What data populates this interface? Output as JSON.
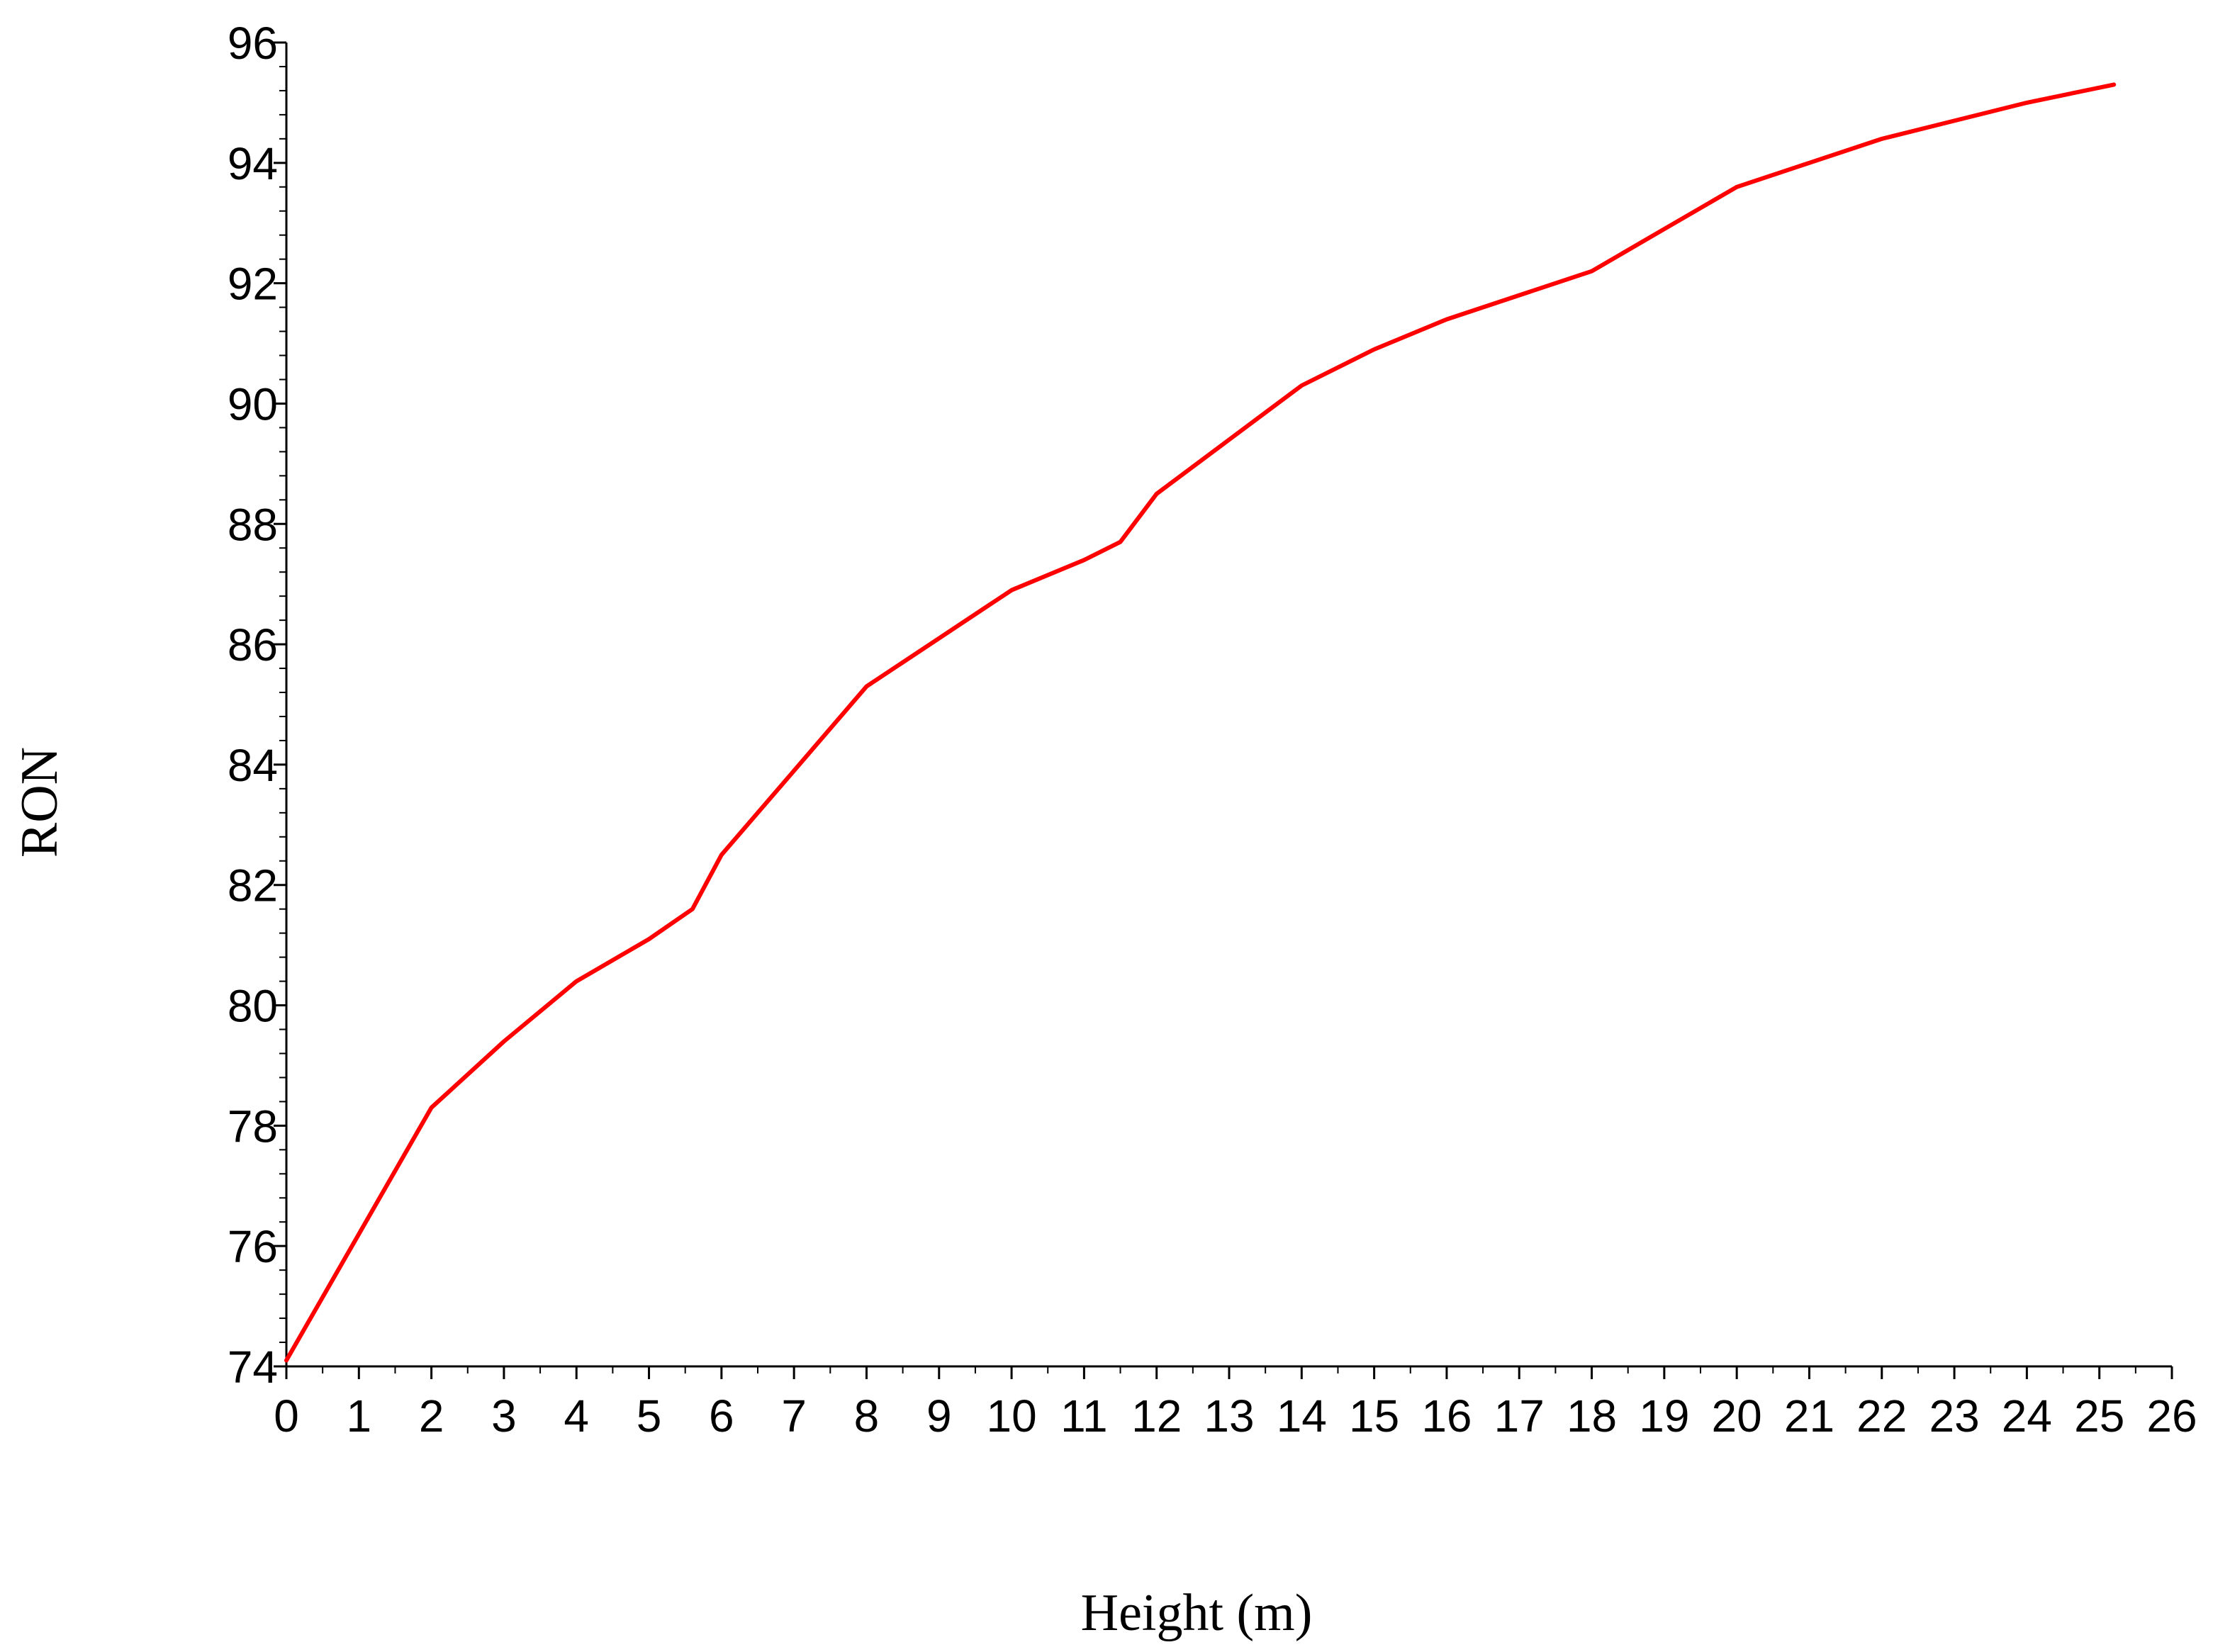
{
  "chart_data": {
    "type": "line",
    "title": "",
    "xlabel": "Height (m)",
    "ylabel": "RON",
    "xlim": [
      0,
      26
    ],
    "ylim": [
      74,
      96
    ],
    "x_ticks": [
      0,
      1,
      2,
      3,
      4,
      5,
      6,
      7,
      8,
      9,
      10,
      11,
      12,
      13,
      14,
      15,
      16,
      17,
      18,
      19,
      20,
      21,
      22,
      23,
      24,
      25,
      26
    ],
    "y_ticks": [
      74,
      76,
      78,
      80,
      82,
      84,
      86,
      88,
      90,
      92,
      94,
      96
    ],
    "x_minor_step": 0.5,
    "y_minor_step": 0.4,
    "grid": false,
    "legend": "none",
    "series": [
      {
        "color": "#ff0000",
        "x": [
          0,
          1,
          2,
          3,
          4,
          5,
          5.6,
          6,
          7,
          8,
          9,
          10,
          11,
          11.5,
          12,
          13,
          14,
          15,
          16,
          17,
          18,
          19,
          20,
          21,
          22,
          23,
          24,
          25.2
        ],
        "y": [
          74.1,
          76.2,
          78.3,
          79.4,
          80.4,
          81.1,
          81.6,
          82.5,
          83.9,
          85.3,
          86.1,
          86.9,
          87.4,
          87.7,
          88.5,
          89.4,
          90.3,
          90.9,
          91.4,
          91.8,
          92.2,
          92.9,
          93.6,
          94.0,
          94.4,
          94.7,
          95.0,
          95.3
        ]
      }
    ]
  }
}
